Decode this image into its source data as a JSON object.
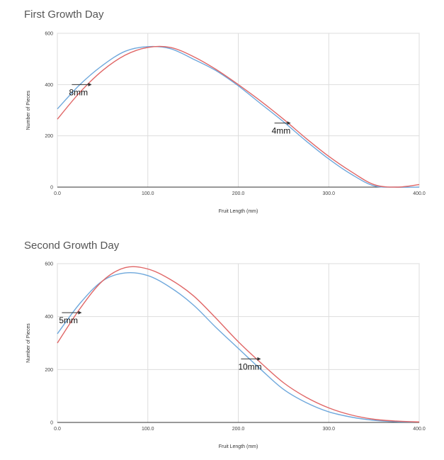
{
  "chart_data": [
    {
      "type": "line",
      "title": "First Growth Day",
      "xlabel": "Fruit Length (mm)",
      "ylabel": "Number of Pieces",
      "xlim": [
        0,
        400
      ],
      "ylim": [
        0,
        600
      ],
      "x_ticks": [
        0,
        100,
        200,
        300,
        400
      ],
      "x_tick_labels": [
        "0.0",
        "100.0",
        "200.0",
        "300.0",
        "400.0"
      ],
      "y_ticks": [
        0,
        200,
        400,
        600
      ],
      "y_tick_labels": [
        "0",
        "200",
        "400",
        "600"
      ],
      "grid": true,
      "series": [
        {
          "color": "#6fa8dc",
          "x": [
            0,
            25,
            50,
            75,
            100,
            125,
            150,
            175,
            200,
            225,
            250,
            275,
            300,
            325,
            350,
            375,
            400
          ],
          "y": [
            305,
            400,
            475,
            530,
            548,
            540,
            500,
            455,
            395,
            325,
            255,
            180,
            110,
            50,
            5,
            0,
            0
          ]
        },
        {
          "color": "#e06666",
          "x": [
            0,
            25,
            50,
            75,
            100,
            125,
            150,
            175,
            200,
            225,
            250,
            275,
            300,
            325,
            350,
            375,
            400
          ],
          "y": [
            265,
            370,
            455,
            515,
            545,
            545,
            510,
            460,
            400,
            335,
            265,
            190,
            120,
            60,
            10,
            0,
            10
          ]
        }
      ],
      "annotations": [
        {
          "text": "8mm",
          "x": 16,
          "y": 400,
          "arrow_to_x": 38
        },
        {
          "text": "4mm",
          "x": 240,
          "y": 250,
          "arrow_to_x": 258
        }
      ]
    },
    {
      "type": "line",
      "title": "Second Growth Day",
      "xlabel": "Fruit Length (mm)",
      "ylabel": "Number of Pieces",
      "xlim": [
        0,
        400
      ],
      "ylim": [
        0,
        600
      ],
      "x_ticks": [
        0,
        100,
        200,
        300,
        400
      ],
      "x_tick_labels": [
        "0.0",
        "100.0",
        "200.0",
        "300.0",
        "400.0"
      ],
      "y_ticks": [
        0,
        200,
        400,
        600
      ],
      "y_tick_labels": [
        "0",
        "200",
        "400",
        "600"
      ],
      "grid": true,
      "series": [
        {
          "color": "#6fa8dc",
          "x": [
            0,
            25,
            50,
            75,
            100,
            125,
            150,
            175,
            200,
            225,
            250,
            275,
            300,
            325,
            350,
            375,
            400
          ],
          "y": [
            335,
            450,
            535,
            565,
            555,
            510,
            445,
            360,
            280,
            200,
            125,
            75,
            40,
            20,
            8,
            3,
            2
          ]
        },
        {
          "color": "#e06666",
          "x": [
            0,
            25,
            50,
            75,
            100,
            125,
            150,
            175,
            200,
            225,
            250,
            275,
            300,
            325,
            350,
            375,
            400
          ],
          "y": [
            300,
            430,
            535,
            585,
            580,
            540,
            480,
            395,
            305,
            225,
            150,
            95,
            55,
            28,
            12,
            5,
            2
          ]
        }
      ],
      "annotations": [
        {
          "text": "5mm",
          "x": 5,
          "y": 415,
          "arrow_to_x": 27
        },
        {
          "text": "10mm",
          "x": 203,
          "y": 240,
          "arrow_to_x": 225
        }
      ]
    }
  ]
}
